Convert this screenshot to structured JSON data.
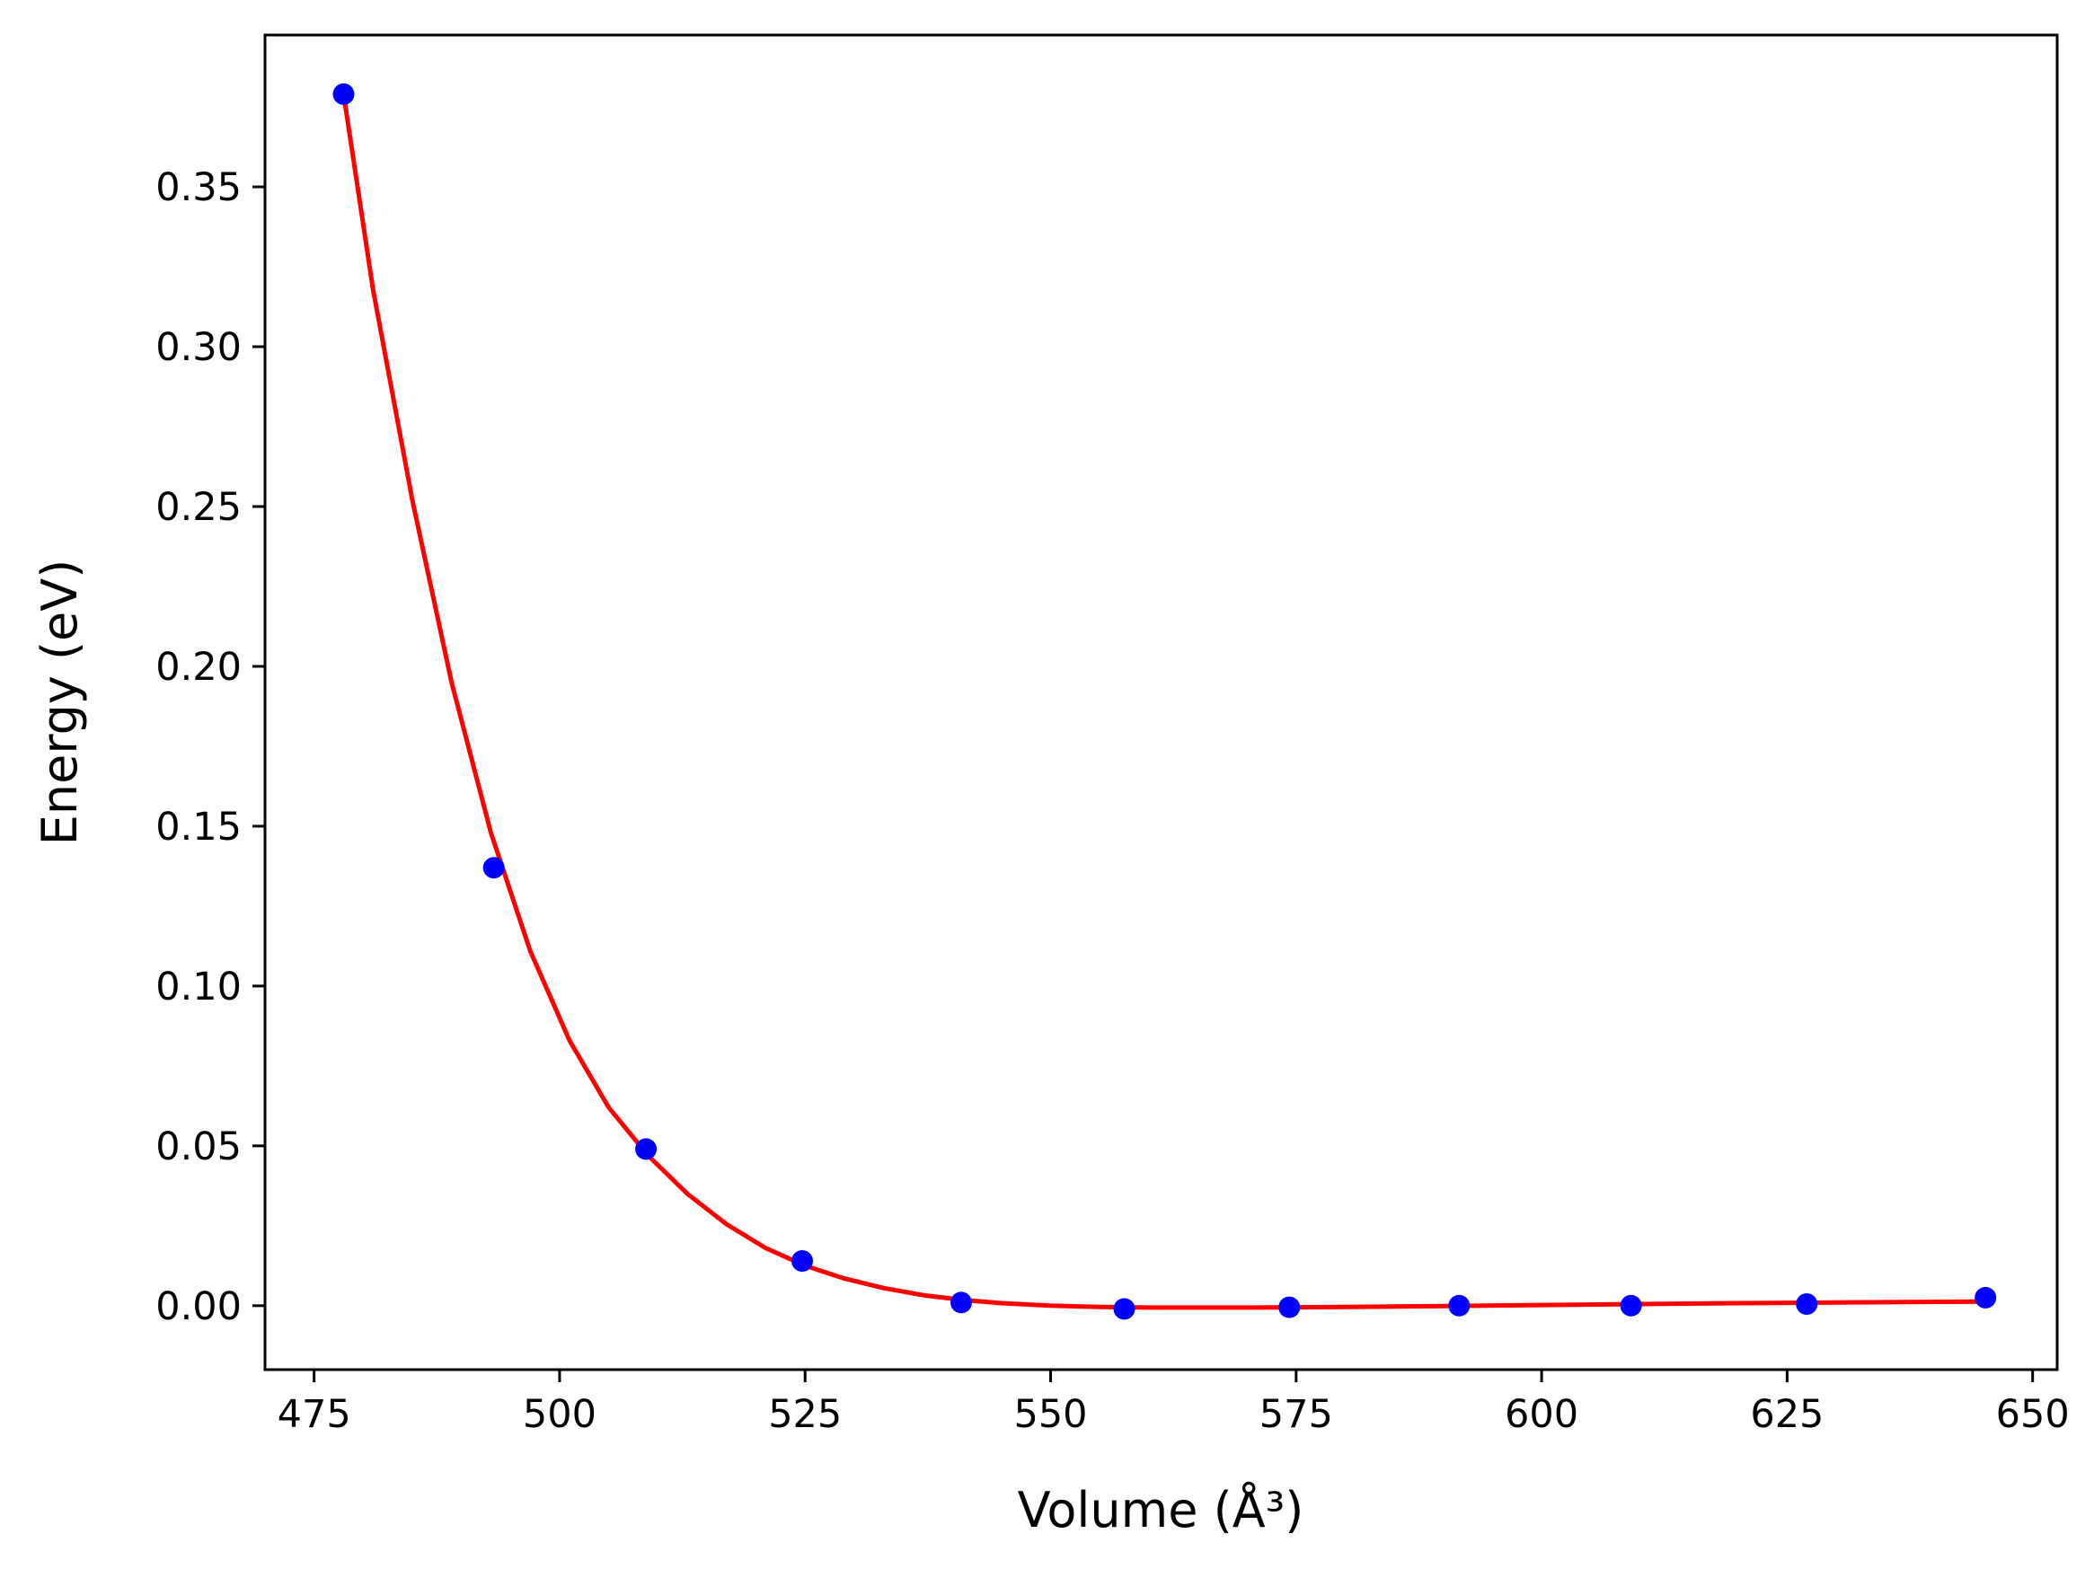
{
  "chart_data": {
    "type": "line",
    "title": "",
    "xlabel": "Volume (Å³)",
    "ylabel": "Energy (eV)",
    "xlim": [
      470,
      652.5
    ],
    "ylim": [
      -0.02,
      0.3975
    ],
    "xticks": [
      475,
      500,
      525,
      550,
      575,
      600,
      625,
      650
    ],
    "xtick_labels": [
      "475",
      "500",
      "525",
      "550",
      "575",
      "600",
      "625",
      "650"
    ],
    "yticks": [
      0.0,
      0.05,
      0.1,
      0.15,
      0.2,
      0.25,
      0.3,
      0.35
    ],
    "ytick_labels": [
      "0.00",
      "0.05",
      "0.10",
      "0.15",
      "0.20",
      "0.25",
      "0.30",
      "0.35"
    ],
    "grid": false,
    "series": [
      {
        "kind": "scatter",
        "color": "#0000ff",
        "x": [
          478.0,
          493.3,
          508.8,
          524.7,
          540.9,
          557.5,
          574.3,
          591.6,
          609.1,
          627.0,
          645.2
        ],
        "y": [
          0.379,
          0.137,
          0.049,
          0.014,
          0.001,
          -0.001,
          -0.0005,
          0.0,
          0.0,
          0.0005,
          0.0025
        ]
      },
      {
        "kind": "line",
        "color": "#ff0000",
        "x": [
          478,
          481,
          485,
          489,
          493,
          497,
          501,
          505,
          509,
          513,
          517,
          521,
          525,
          529,
          533,
          537,
          541,
          545,
          550,
          555,
          560,
          570,
          580,
          590,
          600,
          610,
          620,
          630,
          645.2
        ],
        "y": [
          0.379,
          0.318,
          0.252,
          0.195,
          0.148,
          0.111,
          0.083,
          0.062,
          0.047,
          0.035,
          0.0255,
          0.018,
          0.0125,
          0.0085,
          0.0055,
          0.0033,
          0.0018,
          0.0008,
          0.0,
          -0.0004,
          -0.0006,
          -0.0006,
          -0.0004,
          -0.0001,
          0.0002,
          0.0005,
          0.0008,
          0.001,
          0.0013
        ]
      }
    ]
  }
}
